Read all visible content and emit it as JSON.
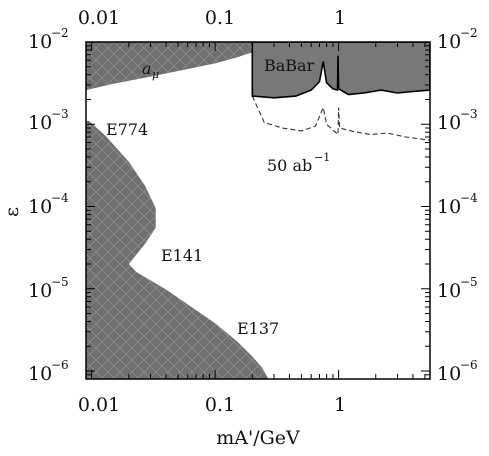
{
  "chart_data": {
    "type": "area",
    "title": "",
    "xlabel": "mA'/GeV",
    "ylabel": "ε",
    "xscale": "log",
    "yscale": "log",
    "xlim": [
      0.009,
      5.5
    ],
    "ylim": [
      8e-07,
      0.01
    ],
    "x_tick_labels": [
      "0.01",
      "0.1",
      "1"
    ],
    "y_ticks": [
      {
        "base": "10",
        "exp": "−2"
      },
      {
        "base": "10",
        "exp": "−3"
      },
      {
        "base": "10",
        "exp": "−4"
      },
      {
        "base": "10",
        "exp": "−5"
      },
      {
        "base": "10",
        "exp": "−6"
      }
    ],
    "annotations": {
      "a_mu": "a",
      "a_mu_sub": "μ",
      "babar": "BaBar",
      "e774": "E774",
      "e141": "E141",
      "e137": "E137",
      "projection": "50 ab",
      "projection_sup": "−1"
    },
    "colors": {
      "excluded_fill": "#6f6f6f",
      "babar_fill": "#787878",
      "hatch": "#9a9a9a",
      "frame": "#000000",
      "projection_line": "#333333"
    },
    "regions": {
      "a_mu": [
        [
          0.009,
          0.0026
        ],
        [
          0.015,
          0.0031
        ],
        [
          0.03,
          0.0038
        ],
        [
          0.06,
          0.0047
        ],
        [
          0.1,
          0.0055
        ],
        [
          0.15,
          0.0065
        ],
        [
          0.2,
          0.0075
        ],
        [
          0.2,
          0.01
        ],
        [
          0.009,
          0.01
        ]
      ],
      "babar": [
        [
          0.2,
          0.01
        ],
        [
          0.2,
          0.0022
        ],
        [
          0.3,
          0.0021
        ],
        [
          0.45,
          0.0022
        ],
        [
          0.6,
          0.0026
        ],
        [
          0.7,
          0.0033
        ],
        [
          0.75,
          0.0058
        ],
        [
          0.8,
          0.0032
        ],
        [
          0.9,
          0.0027
        ],
        [
          0.98,
          0.0026
        ],
        [
          0.99,
          0.0068
        ],
        [
          1.0,
          0.0027
        ],
        [
          1.2,
          0.0023
        ],
        [
          1.6,
          0.0024
        ],
        [
          2.2,
          0.0026
        ],
        [
          3.0,
          0.0024
        ],
        [
          4.0,
          0.0025
        ],
        [
          5.5,
          0.0026
        ],
        [
          5.5,
          0.01
        ]
      ],
      "beam_dump": [
        [
          0.009,
          0.0011
        ],
        [
          0.0095,
          0.0011
        ],
        [
          0.013,
          0.00072
        ],
        [
          0.02,
          0.00035
        ],
        [
          0.027,
          0.00018
        ],
        [
          0.033,
          9.5e-05
        ],
        [
          0.033,
          5.5e-05
        ],
        [
          0.027,
          3.5e-05
        ],
        [
          0.02,
          2e-05
        ],
        [
          0.023,
          1.6e-05
        ],
        [
          0.04,
          9.8e-06
        ],
        [
          0.07,
          5.5e-06
        ],
        [
          0.1,
          3.8e-06
        ],
        [
          0.15,
          2.3e-06
        ],
        [
          0.2,
          1.5e-06
        ],
        [
          0.24,
          1.1e-06
        ],
        [
          0.27,
          8e-07
        ],
        [
          0.009,
          8e-07
        ]
      ]
    },
    "series": [
      {
        "values": [
          [
            0.2,
            0.0022
          ],
          [
            0.25,
            0.00105
          ],
          [
            0.35,
            0.0009
          ],
          [
            0.5,
            0.00083
          ],
          [
            0.65,
            0.00095
          ],
          [
            0.75,
            0.0016
          ],
          [
            0.8,
            0.001
          ],
          [
            0.9,
            0.00085
          ],
          [
            0.99,
            0.00075
          ],
          [
            1.0,
            0.0016
          ],
          [
            1.02,
            0.0009
          ],
          [
            1.3,
            0.00082
          ],
          [
            1.8,
            0.00075
          ],
          [
            2.5,
            0.00078
          ],
          [
            3.5,
            0.0007
          ],
          [
            5.5,
            0.00064
          ]
        ]
      }
    ]
  }
}
